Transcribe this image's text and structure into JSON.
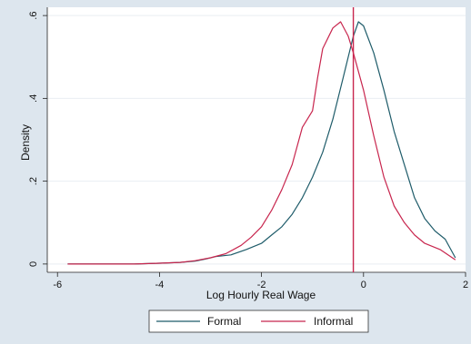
{
  "chart_data": {
    "type": "line",
    "title": "",
    "xlabel": "Log Hourly Real Wage",
    "ylabel": "Density",
    "xlim": [
      -6.2,
      2.0
    ],
    "ylim": [
      -0.02,
      0.62
    ],
    "x_ticks": [
      -6,
      -4,
      -2,
      0,
      2
    ],
    "x_tick_labels": [
      "-6",
      "-4",
      "-2",
      "0",
      "2"
    ],
    "y_ticks": [
      0,
      0.2,
      0.4,
      0.6
    ],
    "y_tick_labels": [
      "0",
      ".2",
      ".4",
      ".6"
    ],
    "grid": "horizontal",
    "legend": "bottom",
    "reference_line": {
      "x": -0.2,
      "color": "#c8264e"
    },
    "series": [
      {
        "name": "Formal",
        "color": "#1f5c6a",
        "x": [
          -5.8,
          -5.0,
          -4.5,
          -4.0,
          -3.6,
          -3.3,
          -3.1,
          -2.9,
          -2.6,
          -2.3,
          -2.0,
          -1.8,
          -1.6,
          -1.4,
          -1.2,
          -1.0,
          -0.8,
          -0.6,
          -0.4,
          -0.2,
          -0.1,
          0.0,
          0.2,
          0.4,
          0.6,
          0.8,
          1.0,
          1.2,
          1.4,
          1.6,
          1.8
        ],
        "y": [
          0.0,
          0.0,
          0.0,
          0.002,
          0.004,
          0.007,
          0.012,
          0.018,
          0.022,
          0.035,
          0.05,
          0.07,
          0.09,
          0.12,
          0.16,
          0.21,
          0.27,
          0.35,
          0.45,
          0.55,
          0.585,
          0.575,
          0.51,
          0.42,
          0.32,
          0.24,
          0.16,
          0.11,
          0.08,
          0.06,
          0.015
        ]
      },
      {
        "name": "Informal",
        "color": "#c8264e",
        "x": [
          -5.8,
          -5.0,
          -4.5,
          -4.0,
          -3.6,
          -3.3,
          -3.0,
          -2.7,
          -2.4,
          -2.2,
          -2.0,
          -1.8,
          -1.6,
          -1.4,
          -1.2,
          -1.0,
          -0.9,
          -0.8,
          -0.6,
          -0.45,
          -0.3,
          -0.2,
          0.0,
          0.2,
          0.4,
          0.6,
          0.8,
          1.0,
          1.2,
          1.5,
          1.8
        ],
        "y": [
          0.0,
          0.0,
          0.0,
          0.002,
          0.004,
          0.008,
          0.015,
          0.025,
          0.045,
          0.065,
          0.09,
          0.13,
          0.18,
          0.24,
          0.33,
          0.37,
          0.45,
          0.52,
          0.57,
          0.585,
          0.55,
          0.51,
          0.42,
          0.31,
          0.21,
          0.14,
          0.1,
          0.07,
          0.05,
          0.035,
          0.01
        ]
      }
    ]
  }
}
